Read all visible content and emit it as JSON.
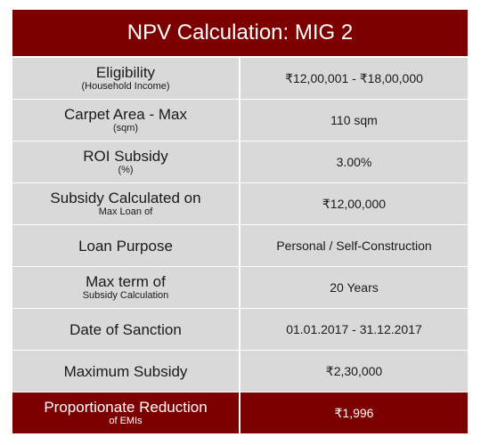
{
  "title": "NPV Calculation: MIG 2",
  "rows": [
    {
      "label": "Eligibility",
      "sublabel": "(Household Income)",
      "value": "₹12,00,001 - ₹18,00,000"
    },
    {
      "label": "Carpet Area - Max",
      "sublabel": "(sqm)",
      "value": "110 sqm"
    },
    {
      "label": "ROI Subsidy",
      "sublabel": "(%)",
      "value": "3.00%"
    },
    {
      "label": "Subsidy Calculated on",
      "sublabel": "Max Loan of",
      "value": "₹12,00,000"
    },
    {
      "label": "Loan Purpose",
      "sublabel": "",
      "value": "Personal / Self-Construction"
    },
    {
      "label": "Max term of",
      "sublabel": "Subsidy Calculation",
      "value": "20 Years"
    },
    {
      "label": "Date of Sanction",
      "sublabel": "",
      "value": "01.01.2017 - 31.12.2017"
    },
    {
      "label": "Maximum Subsidy",
      "sublabel": "",
      "value": "₹2,30,000"
    },
    {
      "label": "Proportionate Reduction",
      "sublabel": "of EMIs",
      "value": "₹1,996"
    }
  ],
  "colors": {
    "header_bg": "#7c0000",
    "row_bg": "#d9d9d9",
    "highlight_bg": "#7c0000"
  }
}
